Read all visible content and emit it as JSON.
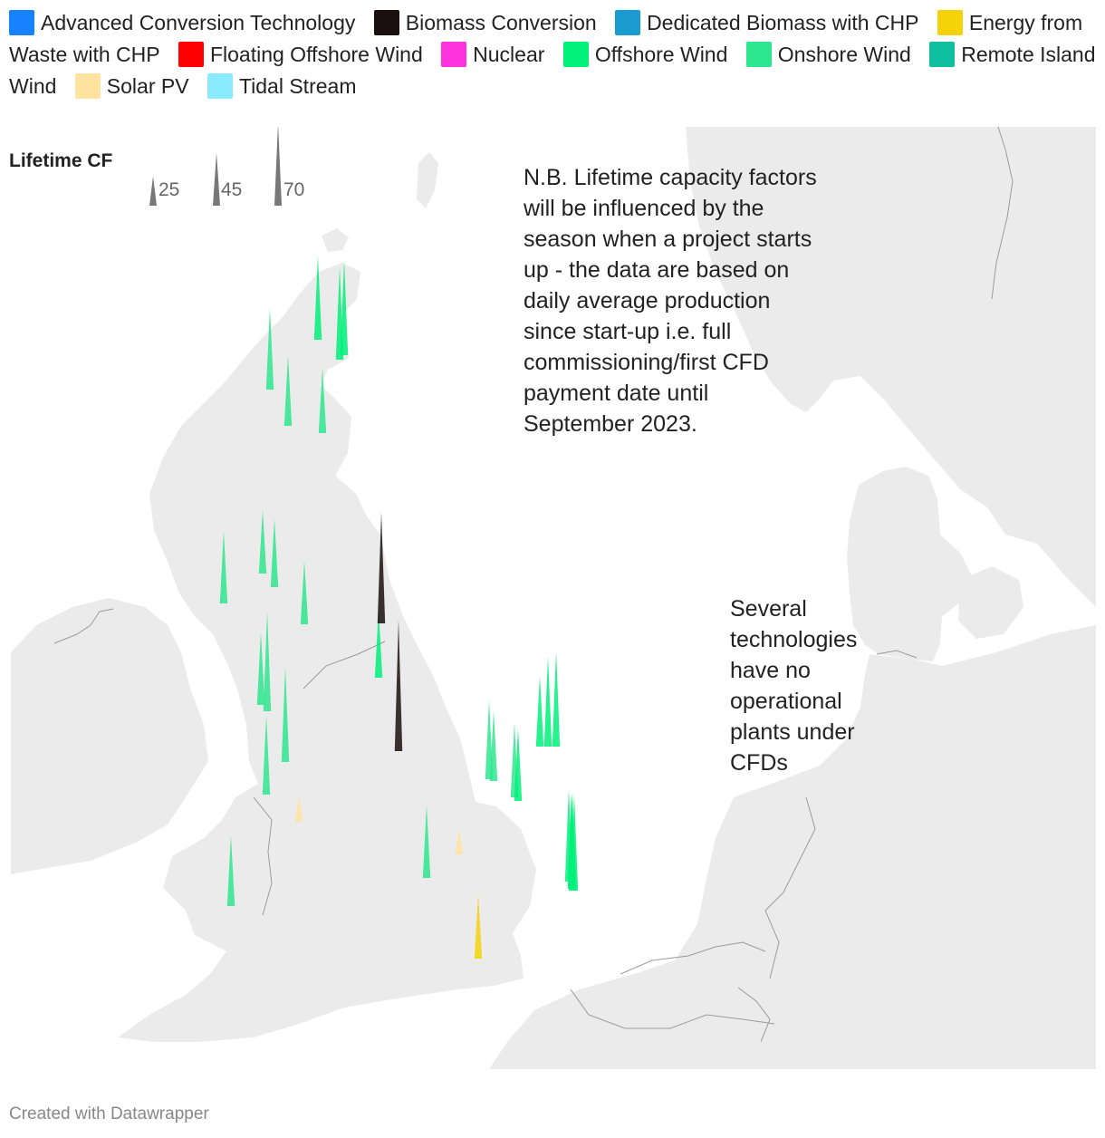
{
  "legend": [
    {
      "label": "Advanced Conversion Technology",
      "color": "#1781FF"
    },
    {
      "label": "Biomass Conversion",
      "color": "#1B0F0F"
    },
    {
      "label": "Dedicated Biomass with CHP",
      "color": "#1A9CD1"
    },
    {
      "label": "Energy from Waste with CHP",
      "color": "#F5D20A"
    },
    {
      "label": "Floating Offshore Wind",
      "color": "#FF0000"
    },
    {
      "label": "Nuclear",
      "color": "#FF33DD"
    },
    {
      "label": "Offshore Wind",
      "color": "#00F07A"
    },
    {
      "label": "Onshore Wind",
      "color": "#2EE68F"
    },
    {
      "label": "Remote Island Wind",
      "color": "#0DBF9F"
    },
    {
      "label": "Solar PV",
      "color": "#FFE3A0"
    },
    {
      "label": "Tidal Stream",
      "color": "#8AEAFF"
    }
  ],
  "size_legend": {
    "title": "Lifetime CF",
    "items": [
      {
        "value": 25,
        "label": "25"
      },
      {
        "value": 45,
        "label": "45"
      },
      {
        "value": 70,
        "label": "70"
      }
    ]
  },
  "notes": [
    "N.B. Lifetime capacity factors will be influenced by the season when a project starts up - the data are based on daily average production since start-up i.e. full commissioning/first CFD payment date until September 2023.",
    "Several technologies have no operational plants under CFDs"
  ],
  "credit": "Created with Datawrapper",
  "map_colors": {
    "land": "#EBEBEB",
    "border": "#9B9B9B",
    "sea": "#FFFFFF"
  },
  "chart_data": {
    "type": "spike-map",
    "value_field": "Lifetime CF",
    "points": [
      {
        "tech": "Onshore Wind",
        "cf": 36
      },
      {
        "tech": "Onshore Wind",
        "cf": 31
      },
      {
        "tech": "Onshore Wind",
        "cf": 29
      },
      {
        "tech": "Offshore Wind",
        "cf": 37
      },
      {
        "tech": "Offshore Wind",
        "cf": 41
      },
      {
        "tech": "Offshore Wind",
        "cf": 42
      },
      {
        "tech": "Onshore Wind",
        "cf": 28
      },
      {
        "tech": "Onshore Wind",
        "cf": 30
      },
      {
        "tech": "Onshore Wind",
        "cf": 28
      },
      {
        "tech": "Onshore Wind",
        "cf": 32
      },
      {
        "tech": "Onshore Wind",
        "cf": 32
      },
      {
        "tech": "Onshore Wind",
        "cf": 44
      },
      {
        "tech": "Onshore Wind",
        "cf": 42
      },
      {
        "tech": "Onshore Wind",
        "cf": 35
      },
      {
        "tech": "Onshore Wind",
        "cf": 31
      },
      {
        "tech": "Onshore Wind",
        "cf": 32
      },
      {
        "tech": "Offshore Wind",
        "cf": 30
      },
      {
        "tech": "Onshore Wind",
        "cf": 35
      },
      {
        "tech": "Onshore Wind",
        "cf": 31
      },
      {
        "tech": "Onshore Wind",
        "cf": 33
      },
      {
        "tech": "Offshore Wind",
        "cf": 32
      },
      {
        "tech": "Offshore Wind",
        "cf": 31
      },
      {
        "tech": "Offshore Wind",
        "cf": 40
      },
      {
        "tech": "Offshore Wind",
        "cf": 42
      },
      {
        "tech": "Offshore Wind",
        "cf": 41
      },
      {
        "tech": "Offshore Wind",
        "cf": 40
      },
      {
        "tech": "Offshore Wind",
        "cf": 42
      },
      {
        "tech": "Offshore Wind",
        "cf": 43
      },
      {
        "tech": "Offshore Wind",
        "cf": 42
      },
      {
        "tech": "Biomass Conversion",
        "cf": 49
      },
      {
        "tech": "Biomass Conversion",
        "cf": 58
      },
      {
        "tech": "Solar PV",
        "cf": 12
      },
      {
        "tech": "Solar PV",
        "cf": 11
      },
      {
        "tech": "Energy from Waste with CHP",
        "cf": 28
      }
    ]
  }
}
